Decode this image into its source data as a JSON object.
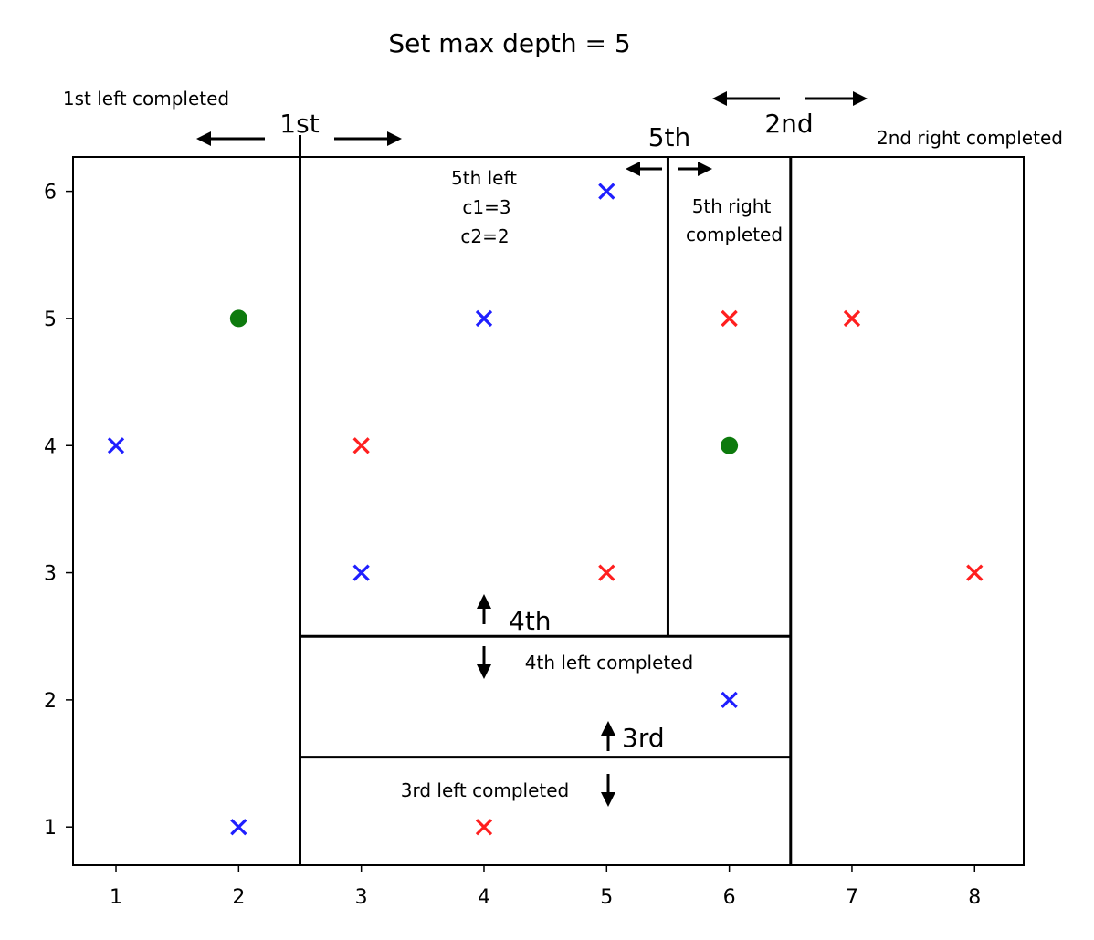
{
  "chart_data": {
    "type": "scatter",
    "title": "Set max depth = 5",
    "xlabel": "",
    "ylabel": "",
    "xlim": [
      0.65,
      8.4
    ],
    "ylim": [
      0.7,
      6.27
    ],
    "xticks": [
      "1",
      "2",
      "3",
      "4",
      "5",
      "6",
      "7",
      "8"
    ],
    "yticks": [
      "1",
      "2",
      "3",
      "4",
      "5",
      "6"
    ],
    "grid": false,
    "series": [
      {
        "marker": "x",
        "color": "#1f1fff",
        "points": [
          [
            1,
            4
          ],
          [
            2,
            1
          ],
          [
            3,
            3
          ],
          [
            4,
            5
          ],
          [
            5,
            6
          ],
          [
            6,
            2
          ]
        ]
      },
      {
        "marker": "x",
        "color": "#ff1f1f",
        "points": [
          [
            3,
            4
          ],
          [
            4,
            1
          ],
          [
            5,
            3
          ],
          [
            6,
            5
          ],
          [
            7,
            5
          ],
          [
            8,
            3
          ]
        ]
      },
      {
        "marker": "o",
        "color": "#0d7a0d",
        "points": [
          [
            2,
            5
          ],
          [
            6,
            4
          ]
        ]
      }
    ],
    "splits": [
      {
        "orientation": "vertical",
        "x": 2.5,
        "y": [
          0.7,
          6.27
        ]
      },
      {
        "orientation": "vertical",
        "x": 6.5,
        "y": [
          0.7,
          6.27
        ]
      },
      {
        "orientation": "horizontal",
        "y": 1.55,
        "x": [
          2.5,
          6.5
        ]
      },
      {
        "orientation": "horizontal",
        "y": 2.5,
        "x": [
          2.5,
          6.5
        ]
      },
      {
        "orientation": "vertical",
        "x": 5.5,
        "y": [
          2.5,
          6.27
        ]
      }
    ],
    "annotations": [
      {
        "text": "1st left completed",
        "size": "small"
      },
      {
        "text": "1st",
        "size": "large"
      },
      {
        "text": "2nd",
        "size": "large"
      },
      {
        "text": "2nd right completed",
        "size": "small"
      },
      {
        "text": "5th",
        "size": "large"
      },
      {
        "text": "5th left",
        "size": "small"
      },
      {
        "text": "c1=3",
        "size": "small"
      },
      {
        "text": "c2=2",
        "size": "small"
      },
      {
        "text": "5th right",
        "size": "small"
      },
      {
        "text": "completed",
        "size": "small"
      },
      {
        "text": "4th",
        "size": "large"
      },
      {
        "text": "4th left completed",
        "size": "small"
      },
      {
        "text": "3rd",
        "size": "large"
      },
      {
        "text": "3rd left completed",
        "size": "small"
      }
    ]
  }
}
